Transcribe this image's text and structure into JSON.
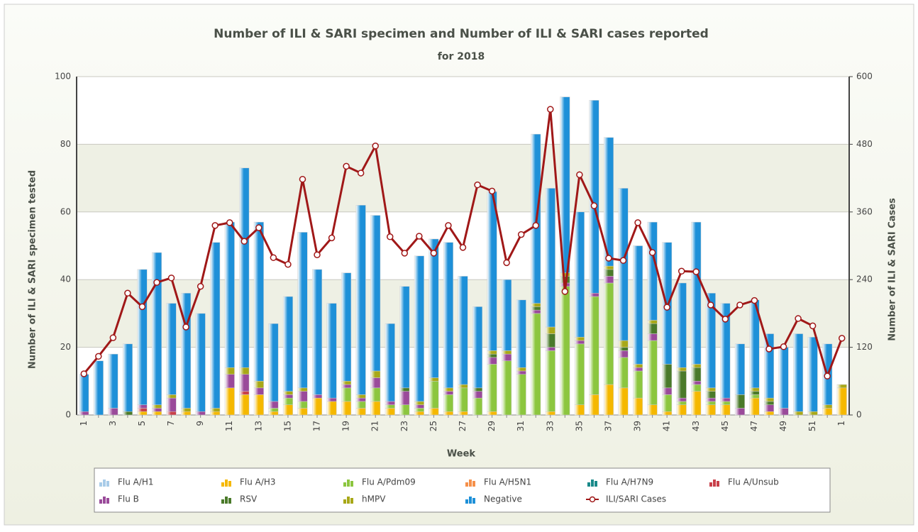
{
  "chart_data": {
    "type": "bar",
    "stacked": true,
    "title": "Number of ILI & SARI specimen and Number of ILI & SARI cases reported",
    "subtitle": "for 2018",
    "x_label": "Week",
    "y_label": "Number of ILI & SARI specimen tested",
    "y2_label": "Number of ILI & SARI Cases",
    "categories": [
      "1",
      null,
      "3",
      null,
      "5",
      null,
      "7",
      null,
      "9",
      null,
      "11",
      null,
      "13",
      null,
      "15",
      null,
      "17",
      null,
      "19",
      null,
      "21",
      null,
      "23",
      null,
      "25",
      null,
      "27",
      null,
      "29",
      null,
      "31",
      null,
      "33",
      null,
      "35",
      null,
      "37",
      null,
      "39",
      null,
      "41",
      null,
      "43",
      null,
      "45",
      null,
      "47",
      null,
      "49",
      null,
      "51",
      null,
      "1"
    ],
    "ylim": [
      0,
      100
    ],
    "yticks": [
      0,
      20,
      40,
      60,
      80,
      100
    ],
    "y2lim": [
      0,
      600
    ],
    "y2ticks": [
      0,
      120,
      240,
      360,
      480,
      600
    ],
    "grid": true,
    "legend": "bottom",
    "series": [
      {
        "name": "Flu A/H1",
        "color": "#a8cbe8",
        "values": [
          0,
          0,
          0,
          0,
          0,
          0,
          0,
          0,
          0,
          0,
          0,
          0,
          0,
          0,
          0,
          0,
          0,
          0,
          0,
          0,
          0,
          0,
          0,
          0,
          0,
          0,
          0,
          0,
          0,
          0,
          0,
          0,
          0,
          0,
          0,
          0,
          0,
          0,
          0,
          0,
          0,
          0,
          0,
          0,
          0,
          0,
          0,
          0,
          0,
          0,
          0,
          0,
          0
        ]
      },
      {
        "name": "Flu A/H3",
        "color": "#f5b800",
        "values": [
          0,
          0,
          0,
          0,
          1,
          1,
          0,
          1,
          0,
          1,
          8,
          6,
          6,
          1,
          3,
          2,
          5,
          4,
          4,
          2,
          4,
          2,
          0,
          1,
          2,
          1,
          1,
          0,
          1,
          0,
          0,
          0,
          1,
          0,
          3,
          6,
          9,
          8,
          5,
          3,
          1,
          3,
          7,
          3,
          3,
          0,
          5,
          1,
          0,
          0,
          0,
          2,
          8
        ]
      },
      {
        "name": "Flu A/Pdm09",
        "color": "#8cc63f",
        "values": [
          0,
          0,
          0,
          0,
          0,
          0,
          0,
          0,
          0,
          0,
          0,
          0,
          0,
          1,
          2,
          2,
          0,
          0,
          4,
          2,
          4,
          1,
          3,
          1,
          8,
          5,
          7,
          5,
          14,
          16,
          12,
          30,
          18,
          38,
          18,
          29,
          30,
          9,
          8,
          19,
          5,
          1,
          2,
          1,
          1,
          0,
          1,
          0,
          0,
          0,
          0,
          0,
          0
        ]
      },
      {
        "name": "Flu A/H5N1",
        "color": "#f5904a",
        "values": [
          0,
          0,
          0,
          0,
          0,
          0,
          0,
          0,
          0,
          0,
          0,
          0,
          0,
          0,
          0,
          0,
          0,
          0,
          0,
          0,
          0,
          0,
          0,
          0,
          0,
          0,
          0,
          0,
          0,
          0,
          0,
          0,
          0,
          0,
          0,
          0,
          0,
          0,
          0,
          0,
          0,
          0,
          0,
          0,
          0,
          0,
          0,
          0,
          0,
          0,
          0,
          0,
          0
        ]
      },
      {
        "name": "Flu A/H7N9",
        "color": "#1a8a8a",
        "values": [
          0,
          0,
          0,
          0,
          0,
          0,
          0,
          0,
          0,
          0,
          0,
          0,
          0,
          0,
          0,
          0,
          0,
          0,
          0,
          0,
          0,
          0,
          0,
          0,
          0,
          0,
          0,
          0,
          0,
          0,
          0,
          0,
          0,
          0,
          0,
          0,
          0,
          0,
          0,
          0,
          0,
          0,
          0,
          0,
          0,
          0,
          0,
          0,
          0,
          0,
          0,
          0,
          0
        ]
      },
      {
        "name": "Flu A/Unsub",
        "color": "#c8404a",
        "values": [
          0,
          0,
          0,
          0,
          1,
          0,
          1,
          0,
          0,
          0,
          0,
          1,
          0,
          0,
          0,
          0,
          0,
          0,
          0,
          0,
          0,
          0,
          0,
          0,
          0,
          0,
          0,
          0,
          0,
          0,
          0,
          0,
          0,
          0,
          0,
          0,
          0,
          0,
          0,
          0,
          0,
          0,
          0,
          0,
          0,
          0,
          0,
          0,
          0,
          0,
          0,
          0,
          0
        ]
      },
      {
        "name": "Flu B",
        "color": "#9a4a9a",
        "values": [
          1,
          0,
          2,
          0,
          1,
          1,
          4,
          0,
          1,
          0,
          4,
          5,
          2,
          2,
          1,
          3,
          1,
          1,
          1,
          1,
          3,
          1,
          4,
          1,
          0,
          1,
          0,
          2,
          2,
          2,
          1,
          1,
          1,
          1,
          1,
          1,
          2,
          2,
          1,
          2,
          2,
          1,
          1,
          1,
          1,
          2,
          0,
          2,
          2,
          0,
          0,
          0,
          0
        ]
      },
      {
        "name": "RSV",
        "color": "#4a7a2a",
        "values": [
          0,
          0,
          0,
          1,
          0,
          0,
          0,
          0,
          0,
          0,
          0,
          0,
          0,
          0,
          0,
          0,
          0,
          0,
          0,
          0,
          0,
          0,
          1,
          0,
          0,
          0,
          0,
          1,
          1,
          0,
          0,
          1,
          4,
          2,
          0,
          0,
          2,
          1,
          0,
          3,
          7,
          8,
          4,
          2,
          0,
          4,
          1,
          1,
          0,
          0,
          0,
          0,
          0
        ]
      },
      {
        "name": "hMPV",
        "color": "#a8a818",
        "values": [
          0,
          0,
          0,
          0,
          0,
          1,
          1,
          1,
          0,
          1,
          2,
          2,
          2,
          0,
          1,
          1,
          0,
          0,
          1,
          1,
          2,
          0,
          0,
          1,
          1,
          1,
          1,
          0,
          1,
          1,
          1,
          1,
          2,
          1,
          1,
          0,
          1,
          2,
          1,
          1,
          0,
          1,
          1,
          1,
          0,
          0,
          1,
          1,
          0,
          1,
          1,
          1,
          1
        ]
      },
      {
        "name": "Negative",
        "color": "#1e90d8",
        "values": [
          11,
          16,
          16,
          20,
          40,
          45,
          27,
          34,
          29,
          49,
          43,
          59,
          47,
          23,
          28,
          46,
          37,
          28,
          32,
          56,
          46,
          23,
          30,
          43,
          41,
          43,
          32,
          24,
          47,
          21,
          20,
          50,
          41,
          52,
          37,
          57,
          38,
          45,
          35,
          29,
          36,
          25,
          42,
          28,
          28,
          15,
          26,
          19,
          18,
          23,
          22,
          18,
          0
        ]
      },
      {
        "name": "ILI/SARI Cases",
        "color": "#a01818",
        "type": "line",
        "axis": "y2",
        "values": [
          73,
          104,
          137,
          216,
          192,
          235,
          243,
          156,
          228,
          336,
          341,
          308,
          332,
          279,
          267,
          418,
          284,
          314,
          441,
          429,
          477,
          316,
          287,
          317,
          287,
          336,
          297,
          408,
          397,
          270,
          320,
          336,
          542,
          219,
          426,
          371,
          278,
          274,
          341,
          288,
          191,
          255,
          254,
          195,
          170,
          195,
          203,
          117,
          121,
          171,
          158,
          69,
          136
        ]
      }
    ]
  }
}
